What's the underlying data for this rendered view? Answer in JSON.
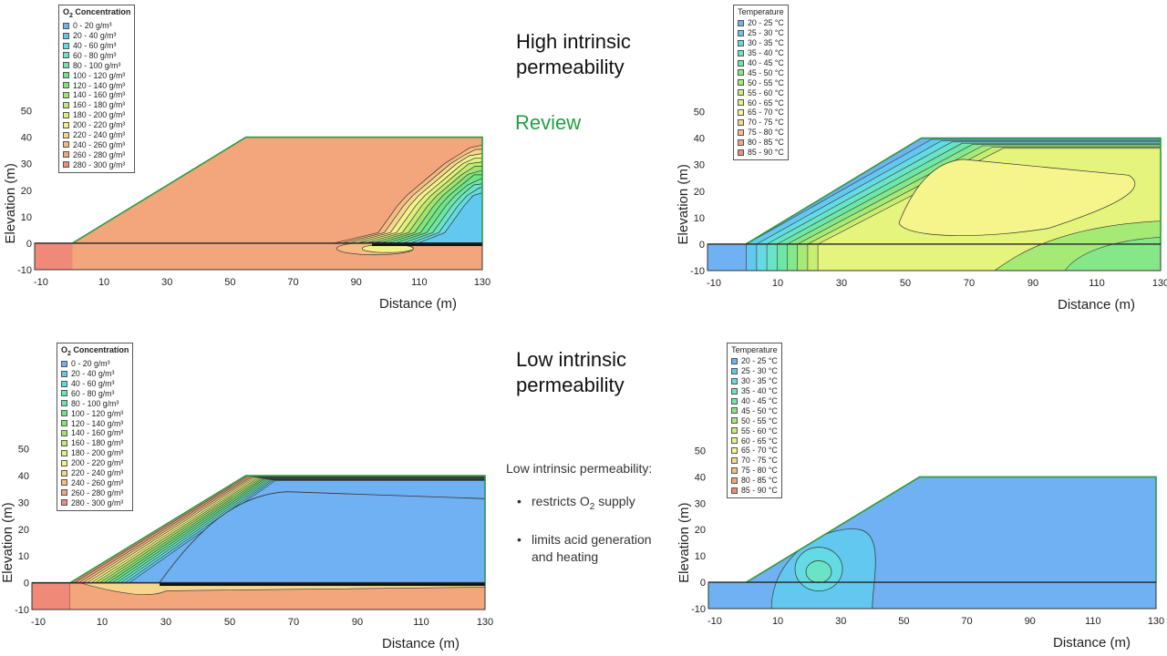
{
  "titles": {
    "high": [
      "High intrinsic",
      "permeability"
    ],
    "review": "Review",
    "low": [
      "Low intrinsic",
      "permeability"
    ]
  },
  "notes": {
    "heading": "Low intrinsic permeability:",
    "bullet1_pre": "restricts O",
    "bullet1_sub": "2",
    "bullet1_post": " supply",
    "bullet2_line1": "limits acid generation",
    "bullet2_line2": "and heating"
  },
  "legends": {
    "o2": {
      "title_pre": "O",
      "title_sub": "2",
      "title_post": " Concentration",
      "items": [
        "0 - 20 g/m³",
        "20 - 40 g/m³",
        "40 - 60 g/m³",
        "60 - 80 g/m³",
        "80 - 100 g/m³",
        "100 - 120 g/m³",
        "120 - 140 g/m³",
        "140 - 160 g/m³",
        "160 - 180 g/m³",
        "180 - 200 g/m³",
        "200 - 220 g/m³",
        "220 - 240 g/m³",
        "240 - 260 g/m³",
        "260 - 280 g/m³",
        "280 - 300 g/m³"
      ]
    },
    "temp": {
      "title": "Temperature",
      "items": [
        "20 - 25 °C",
        "25 - 30 °C",
        "30 - 35 °C",
        "35 - 40 °C",
        "40 - 45 °C",
        "45 - 50 °C",
        "50 - 55 °C",
        "55 - 60 °C",
        "60 - 65 °C",
        "65 - 70 °C",
        "70 - 75 °C",
        "75 - 80 °C",
        "80 - 85 °C",
        "85 - 90 °C"
      ]
    }
  },
  "colors": {
    "o2": [
      "#6fb1f2",
      "#62c8f0",
      "#64dbe4",
      "#69e4c5",
      "#6de7a6",
      "#6de68a",
      "#7fe57c",
      "#9fe670",
      "#c1ea70",
      "#def17b",
      "#f3f28a",
      "#f6d68b",
      "#f5bb82",
      "#f3a57c",
      "#ef8a78"
    ],
    "temp": [
      "#6fb1f2",
      "#62c8f0",
      "#64dbe4",
      "#69e4c5",
      "#6de7a6",
      "#86e788",
      "#a6ea76",
      "#c7ee70",
      "#e4f47c",
      "#f5f58c",
      "#f6d68b",
      "#f5bb82",
      "#f3a57c",
      "#ef8a78"
    ],
    "accent_green": "#22a043",
    "boundary_green": "#2e9a3e"
  },
  "chart_data": [
    {
      "type": "heatmap",
      "title": "O2 Concentration",
      "case": "High intrinsic permeability",
      "xlabel": "Distance (m)",
      "ylabel": "Elevation (m)",
      "xlim": [
        -12,
        130
      ],
      "ylim": [
        -10,
        55
      ],
      "xticks": [
        "-10",
        "10",
        "30",
        "50",
        "70",
        "90",
        "110",
        "130"
      ],
      "yticks": [
        "-10",
        "0",
        "10",
        "20",
        "30",
        "40",
        "50"
      ],
      "background_band": "280 - 300 g/m³",
      "contour_levels": [
        300,
        280,
        260,
        240,
        220,
        200,
        180,
        160,
        140,
        120,
        100,
        80,
        60,
        40,
        20
      ],
      "profile_y": [
        4,
        9,
        14,
        18,
        22,
        26,
        30,
        33,
        36
      ],
      "profile_x": [
        97,
        100,
        103,
        106,
        110,
        114,
        118,
        122,
        126
      ]
    },
    {
      "type": "heatmap",
      "title": "Temperature",
      "case": "High intrinsic permeability",
      "xlabel": "Distance (m)",
      "ylabel": "Elevation (m)",
      "xlim": [
        -12,
        130
      ],
      "ylim": [
        -10,
        55
      ],
      "xticks": [
        "-10",
        "10",
        "30",
        "50",
        "70",
        "90",
        "110",
        "130"
      ],
      "yticks": [
        "-10",
        "0",
        "10",
        "20",
        "30",
        "40",
        "50"
      ],
      "hot_core_band": "65 - 70 °C",
      "bands_from_slope": [
        20,
        25,
        30,
        35,
        40,
        45,
        50,
        55,
        60,
        65
      ]
    },
    {
      "type": "heatmap",
      "title": "O2 Concentration",
      "case": "Low intrinsic permeability",
      "xlabel": "Distance (m)",
      "ylabel": "Elevation (m)",
      "xlim": [
        -12,
        130
      ],
      "ylim": [
        -10,
        55
      ],
      "xticks": [
        "-10",
        "10",
        "30",
        "50",
        "70",
        "90",
        "110",
        "130"
      ],
      "yticks": [
        "-10",
        "0",
        "10",
        "20",
        "30",
        "40",
        "50"
      ],
      "interior_band": "0 - 20 g/m³",
      "slope_bands": [
        300,
        280,
        260,
        240,
        220,
        200,
        180,
        160,
        140,
        120,
        100,
        80,
        60,
        40,
        20
      ]
    },
    {
      "type": "heatmap",
      "title": "Temperature",
      "case": "Low intrinsic permeability",
      "xlabel": "Distance (m)",
      "ylabel": "Elevation (m)",
      "xlim": [
        -12,
        130
      ],
      "ylim": [
        -10,
        55
      ],
      "xticks": [
        "-10",
        "10",
        "30",
        "50",
        "70",
        "90",
        "110",
        "130"
      ],
      "yticks": [
        "-10",
        "0",
        "10",
        "20",
        "30",
        "40",
        "50"
      ],
      "background_band": "20 - 25 °C",
      "hot_spot": {
        "x": 22,
        "y": 5,
        "bands": [
          "25 - 30 °C",
          "30 - 35 °C",
          "35 - 40 °C"
        ]
      }
    }
  ]
}
